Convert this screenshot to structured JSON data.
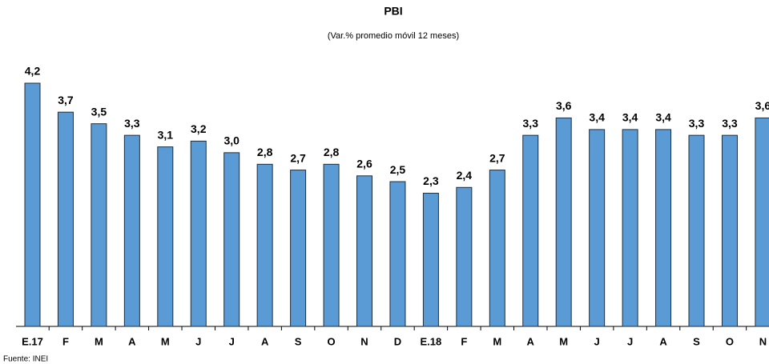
{
  "chart_data": {
    "type": "bar",
    "title": "PBI",
    "subtitle": "(Var.% promedio móvil 12 meses)",
    "categories": [
      "E.17",
      "F",
      "M",
      "A",
      "M",
      "J",
      "J",
      "A",
      "S",
      "O",
      "N",
      "D",
      "E.18",
      "F",
      "M",
      "A",
      "M",
      "J",
      "J",
      "A",
      "S",
      "O",
      "N"
    ],
    "values": [
      4.2,
      3.7,
      3.5,
      3.3,
      3.1,
      3.2,
      3.0,
      2.8,
      2.7,
      2.8,
      2.6,
      2.5,
      2.3,
      2.4,
      2.7,
      3.3,
      3.6,
      3.4,
      3.4,
      3.4,
      3.3,
      3.3,
      3.6
    ],
    "value_labels": [
      "4,2",
      "3,7",
      "3,5",
      "3,3",
      "3,1",
      "3,2",
      "3,0",
      "2,8",
      "2,7",
      "2,8",
      "2,6",
      "2,5",
      "2,3",
      "2,4",
      "2,7",
      "3,3",
      "3,6",
      "3,4",
      "3,4",
      "3,4",
      "3,3",
      "3,3",
      "3,6"
    ],
    "color": "#5b9bd5",
    "source": "Fuente: INEI"
  }
}
